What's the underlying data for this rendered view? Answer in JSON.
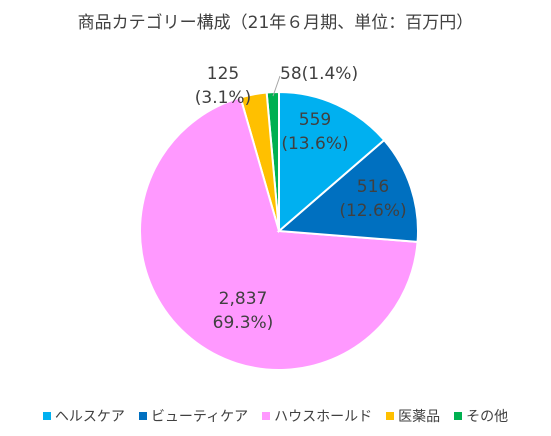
{
  "chart_data": {
    "type": "pie",
    "title": "商品カテゴリー構成（21年６月期、単位：百万円）",
    "categories": [
      "ヘルスケア",
      "ビューティケア",
      "ハウスホールド",
      "医薬品",
      "その他"
    ],
    "values": [
      559,
      516,
      2837,
      125,
      58
    ],
    "percent": [
      13.6,
      12.6,
      69.3,
      3.1,
      1.4
    ],
    "labels": [
      {
        "value": "559",
        "percent": "(13.6%)"
      },
      {
        "value": "516",
        "percent": "(12.6%)"
      },
      {
        "value": "2,837",
        "percent": "69.3%)"
      },
      {
        "value": "125",
        "percent": "(3.1%)"
      },
      {
        "value": "58(1.4%)",
        "percent": ""
      }
    ],
    "colors": [
      "#00b0f0",
      "#0070c0",
      "#ff99ff",
      "#ffc000",
      "#00b050"
    ],
    "legend_position": "bottom"
  }
}
